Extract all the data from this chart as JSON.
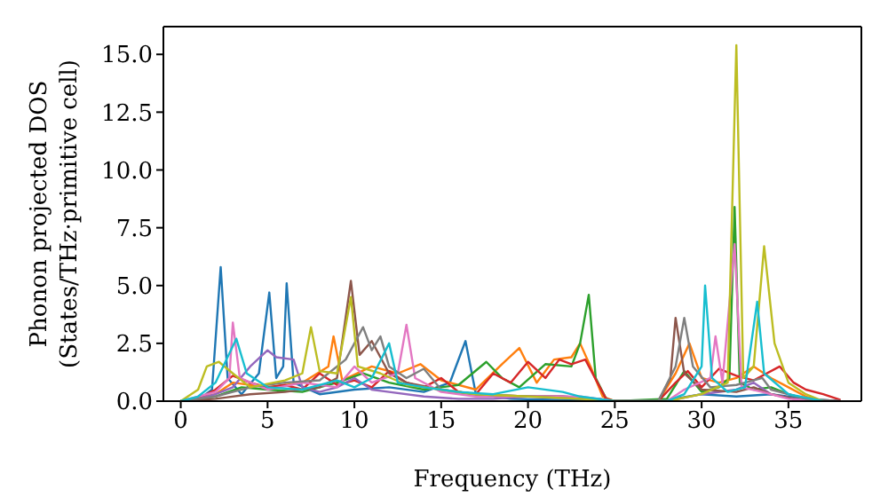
{
  "chart_data": {
    "type": "line",
    "xlabel": "Frequency (THz)",
    "ylabel": "Phonon projected DOS\n(States/THz·primitive cell)",
    "xlim": [
      -1,
      39.2
    ],
    "xticks": [
      0,
      5,
      10,
      15,
      20,
      25,
      30,
      35
    ],
    "ylim": [
      0,
      16.2
    ],
    "yticks": [
      {
        "value": 0,
        "label": "0.0"
      },
      {
        "value": 2.5,
        "label": "2.5"
      },
      {
        "value": 5,
        "label": "5.0"
      },
      {
        "value": 7.5,
        "label": "7.5"
      },
      {
        "value": 10,
        "label": "10.0"
      },
      {
        "value": 12.5,
        "label": "12.5"
      },
      {
        "value": 15,
        "label": "15.0"
      }
    ],
    "marker": "none",
    "line_style": "solid",
    "series": [
      {
        "color": "#1f77b4",
        "x": [
          0,
          1,
          1.8,
          2.3,
          2.7,
          3.5,
          4.5,
          5.1,
          5.5,
          5.9,
          6.1,
          6.5,
          8,
          10,
          12,
          14,
          15.5,
          16.4,
          17,
          19,
          22,
          25,
          28,
          30,
          32,
          34,
          36,
          38
        ],
        "values": [
          0,
          0.05,
          0.5,
          5.8,
          1,
          0.3,
          1.2,
          4.7,
          1,
          1.5,
          5.1,
          0.8,
          0.3,
          0.5,
          0.6,
          0.4,
          0.8,
          2.6,
          0.3,
          0.1,
          0.05,
          0,
          0.05,
          0.3,
          0.2,
          0.3,
          0.1,
          0
        ]
      },
      {
        "color": "#ff7f0e",
        "x": [
          0,
          2,
          3,
          5,
          7,
          8.5,
          8.8,
          9.3,
          11,
          12.5,
          13.8,
          15,
          17,
          18.5,
          19.5,
          20.5,
          21.5,
          22.5,
          23,
          23.6,
          24.3,
          25,
          27.5,
          28.5,
          29.3,
          30,
          31,
          32,
          33,
          34,
          35,
          36,
          37
        ],
        "values": [
          0,
          0.3,
          0.8,
          0.6,
          0.8,
          1.5,
          2.8,
          0.9,
          1.5,
          1.2,
          1.6,
          0.9,
          0.5,
          1.6,
          2.3,
          0.8,
          1.8,
          1.9,
          2.5,
          1.5,
          0.2,
          0,
          0,
          1.2,
          2.5,
          1,
          0.8,
          1,
          1.5,
          1,
          0.6,
          0.2,
          0
        ]
      },
      {
        "color": "#2ca02c",
        "x": [
          0,
          2,
          3.5,
          5,
          7,
          9,
          10.5,
          12,
          14,
          16,
          17.6,
          18.5,
          19.5,
          21,
          22.5,
          23,
          23.5,
          23.9,
          24.5,
          25,
          28,
          29,
          30,
          31,
          31.6,
          31.9,
          32.2,
          33,
          34,
          35,
          36,
          37
        ],
        "values": [
          0,
          0.2,
          0.6,
          0.5,
          0.4,
          0.8,
          1.2,
          0.8,
          0.5,
          0.7,
          1.7,
          1,
          0.6,
          1.6,
          1.5,
          2.5,
          4.6,
          1,
          0.1,
          0,
          0.1,
          1.3,
          0.4,
          0.6,
          1,
          8.4,
          0.8,
          0.5,
          0.6,
          0.3,
          0.1,
          0
        ]
      },
      {
        "color": "#d62728",
        "x": [
          0,
          1,
          2,
          3,
          4,
          5,
          6,
          7,
          8,
          9,
          10,
          11,
          12,
          13,
          14,
          15,
          16,
          17,
          18,
          19,
          20,
          21,
          21.8,
          22.5,
          23.3,
          24,
          24.5,
          25,
          27.5,
          28.5,
          29.2,
          30,
          31,
          32,
          33,
          34.5,
          35.3,
          36,
          37,
          38
        ],
        "values": [
          0,
          0.1,
          0.5,
          1.1,
          0.8,
          0.6,
          0.7,
          0.5,
          1.2,
          0.7,
          0.9,
          0.6,
          1.3,
          0.8,
          0.6,
          1,
          0.4,
          0.3,
          1.2,
          0.8,
          1.7,
          1,
          1.8,
          1.6,
          1.8,
          0.8,
          0.1,
          0,
          0,
          0.8,
          1.3,
          0.6,
          1.4,
          1.1,
          0.9,
          1.5,
          0.8,
          0.5,
          0.3,
          0.05
        ]
      },
      {
        "color": "#9467bd",
        "x": [
          0,
          1,
          2,
          3,
          4,
          5,
          5.5,
          6.5,
          7,
          8,
          9,
          10,
          11,
          12,
          14,
          16,
          18,
          20,
          22,
          24,
          25,
          28,
          30,
          32,
          33,
          34,
          36,
          38
        ],
        "values": [
          0,
          0.1,
          0.3,
          0.6,
          1.5,
          2.2,
          1.9,
          1.8,
          0.6,
          0.4,
          0.6,
          1,
          0.5,
          0.4,
          0.2,
          0.1,
          0.1,
          0.2,
          0.2,
          0.1,
          0,
          0,
          0.3,
          0.5,
          0.8,
          0.3,
          0,
          0
        ]
      },
      {
        "color": "#8c564b",
        "x": [
          0,
          2,
          4,
          6,
          8,
          9,
          9.8,
          10.3,
          11,
          12,
          13,
          15,
          17,
          20,
          22,
          24,
          25,
          27.5,
          28.2,
          28.5,
          29,
          30,
          32,
          33,
          34,
          36,
          38
        ],
        "values": [
          0,
          0.1,
          0.3,
          0.4,
          0.6,
          1,
          5.2,
          2,
          2.6,
          1.2,
          0.8,
          0.5,
          0.3,
          0.2,
          0.2,
          0.1,
          0,
          0,
          1,
          3.6,
          1.2,
          0.5,
          0.4,
          0.6,
          0.3,
          0,
          0
        ]
      },
      {
        "color": "#e377c2",
        "x": [
          0,
          2,
          2.8,
          3,
          3.4,
          5,
          7,
          9,
          10,
          11,
          12.5,
          13,
          13.5,
          15,
          17,
          20,
          23,
          25,
          28,
          29,
          30.5,
          30.8,
          31.2,
          31.9,
          32.3,
          33.5,
          35,
          37
        ],
        "values": [
          0,
          0.4,
          1,
          3.4,
          1,
          0.5,
          0.8,
          0.6,
          1.5,
          0.8,
          1.2,
          3.3,
          1,
          0.4,
          0.2,
          0.2,
          0.2,
          0,
          0,
          0.5,
          1,
          2.8,
          0.8,
          6.8,
          0.6,
          0.4,
          0.1,
          0
        ]
      },
      {
        "color": "#7f7f7f",
        "x": [
          0,
          2,
          4,
          6,
          8,
          9.5,
          10.5,
          11,
          11.5,
          12,
          13,
          14,
          15,
          17,
          20,
          23,
          25,
          27.5,
          28.5,
          29,
          29.5,
          30.5,
          32,
          33.5,
          34,
          36,
          38
        ],
        "values": [
          0,
          0.2,
          0.6,
          0.8,
          0.9,
          1.8,
          3.2,
          2.2,
          2.8,
          1.5,
          1,
          1.4,
          0.5,
          0.3,
          0.2,
          0.1,
          0,
          0,
          1.5,
          3.6,
          1.5,
          0.6,
          0.7,
          1,
          0.5,
          0.1,
          0
        ]
      },
      {
        "color": "#bcbd22",
        "x": [
          0,
          1,
          1.5,
          2.2,
          3,
          4,
          6,
          7,
          7.5,
          8,
          9,
          9.8,
          10.2,
          11.5,
          13,
          15,
          17,
          20,
          23,
          25,
          28,
          30,
          31.5,
          32,
          32.4,
          33,
          33.6,
          34.2,
          35,
          36,
          37
        ],
        "values": [
          0,
          0.5,
          1.5,
          1.7,
          1.2,
          0.6,
          0.9,
          1.2,
          3.2,
          1.3,
          1.2,
          4.5,
          1.5,
          1.2,
          0.7,
          0.5,
          0.3,
          0.2,
          0.1,
          0,
          0,
          0.3,
          0.8,
          15.4,
          1,
          1.5,
          6.7,
          2.5,
          0.8,
          0.3,
          0
        ]
      },
      {
        "color": "#17becf",
        "x": [
          0,
          1,
          2,
          3.2,
          3.8,
          5,
          7,
          9,
          10,
          11,
          12,
          12.5,
          14,
          16,
          18,
          20,
          22,
          23,
          25,
          28,
          29,
          30,
          30.2,
          30.6,
          31.5,
          32.5,
          33.2,
          33.6,
          35,
          37
        ],
        "values": [
          0,
          0.2,
          0.8,
          2.7,
          1.2,
          0.6,
          0.5,
          0.9,
          0.6,
          1,
          2.5,
          0.8,
          0.6,
          0.4,
          0.3,
          0.6,
          0.4,
          0.2,
          0,
          0,
          0.3,
          1.5,
          5,
          1,
          0.4,
          0.6,
          4.3,
          1.2,
          0.3,
          0
        ]
      }
    ]
  }
}
